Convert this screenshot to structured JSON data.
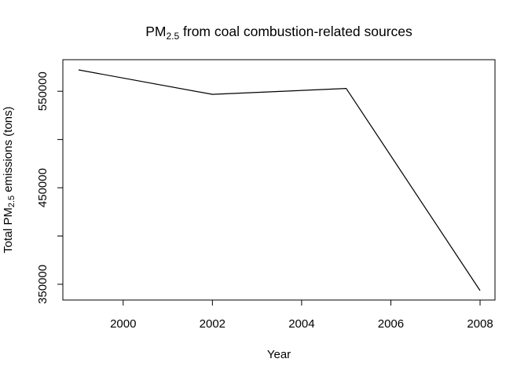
{
  "chart_data": {
    "type": "line",
    "title": {
      "main": "PM",
      "sub": "2.5",
      "rest": " from coal combustion-related sources"
    },
    "xlabel": "Year",
    "ylabel": {
      "pre": "Total PM",
      "sub": "2.5",
      "post": " emissions (tons)"
    },
    "x": [
      1999,
      2002,
      2005,
      2008
    ],
    "series": [
      {
        "values": [
          572126.5,
          546789.2,
          552881.5,
          343432.2
        ]
      }
    ],
    "xlim": [
      1999,
      2008
    ],
    "ylim": [
      343432.2,
      572126.5
    ],
    "xticks": [
      2000,
      2002,
      2004,
      2006,
      2008
    ],
    "yticks": [
      350000,
      400000,
      450000,
      500000,
      550000
    ],
    "ytick_labels": [
      "350000",
      "",
      "450000",
      "",
      "550000"
    ],
    "grid": false,
    "line_color": "#000000"
  }
}
